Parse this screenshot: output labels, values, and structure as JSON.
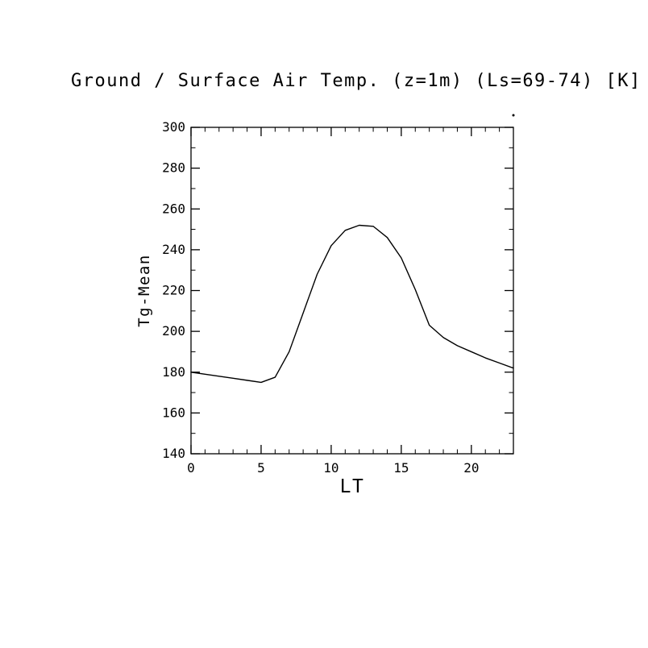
{
  "chart_data": {
    "type": "line",
    "title": "Ground / Surface Air Temp. (z=1m) (Ls=69-74) [K]",
    "xlabel": "LT",
    "ylabel": "Tg-Mean",
    "xlim": [
      0,
      23
    ],
    "ylim": [
      140,
      300
    ],
    "xticks": [
      0,
      5,
      10,
      15,
      20
    ],
    "yticks": [
      140,
      160,
      180,
      200,
      220,
      240,
      260,
      280,
      300
    ],
    "x": [
      0,
      1,
      2,
      3,
      4,
      5,
      6,
      7,
      8,
      9,
      10,
      11,
      12,
      13,
      14,
      15,
      16,
      17,
      18,
      19,
      20,
      21,
      22,
      23
    ],
    "y": [
      180,
      179,
      178,
      177,
      176,
      175,
      177.5,
      190,
      209,
      228,
      242,
      249.5,
      252,
      251.5,
      246,
      236,
      220.5,
      203,
      197,
      193,
      190,
      187,
      184.5,
      182
    ],
    "line_color": "#000000",
    "axis_color": "#000000",
    "background": "#ffffff",
    "grid": false,
    "legend": null
  }
}
